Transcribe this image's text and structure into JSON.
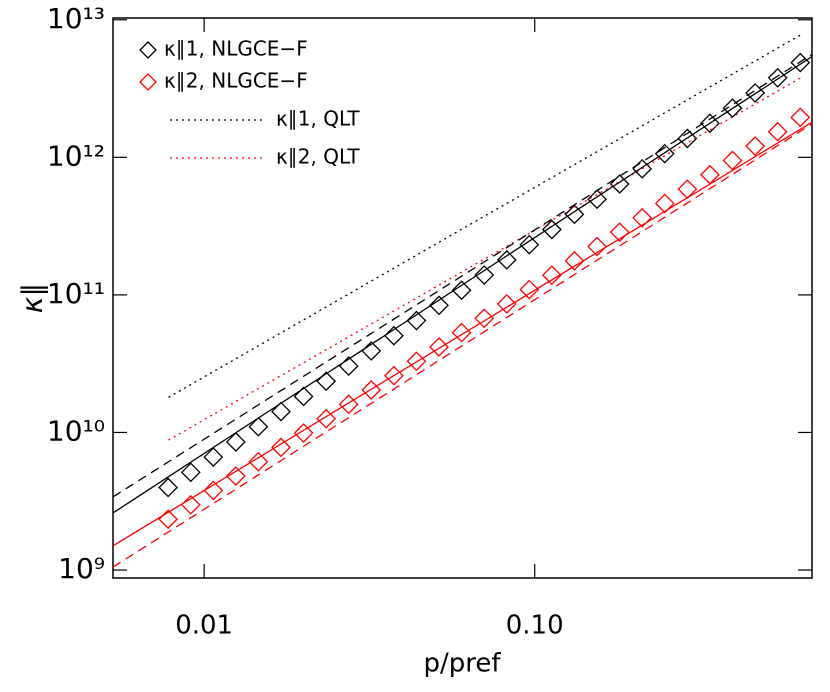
{
  "chart_data": {
    "type": "line",
    "xlabel": "p/pref",
    "ylabel": "κ∥",
    "xscale": "log",
    "yscale": "log",
    "xlim": [
      0.0053,
      0.69
    ],
    "ylim": [
      875000000,
      10300000000000
    ],
    "xticks": [
      0.01,
      {
        "value": 0.1,
        "label": "0.10"
      }
    ],
    "yticks": [
      {
        "value": 1000000000,
        "label": "10⁹"
      },
      {
        "value": 10000000000,
        "label": "10¹⁰"
      },
      {
        "value": 100000000000,
        "label": "10¹¹"
      },
      {
        "value": 1000000000000,
        "label": "10¹²"
      },
      {
        "value": 10000000000000,
        "label": "10¹³"
      }
    ],
    "legend": "upper left",
    "series": [
      {
        "name": "κ∥1, NLGCE−F",
        "color": "#000000",
        "style": "diamond",
        "x": [
          0.00778,
          0.00911,
          0.01066,
          0.01247,
          0.01459,
          0.01708,
          0.01999,
          0.02339,
          0.02737,
          0.03203,
          0.0375,
          0.04388,
          0.05135,
          0.06009,
          0.07035,
          0.08231,
          0.0963,
          0.1127,
          0.1319,
          0.1544,
          0.1807,
          0.2114,
          0.2474,
          0.2896,
          0.3389,
          0.3966,
          0.4643,
          0.5432,
          0.6358
        ],
        "values": [
          3980000000,
          5130000000,
          6620000000,
          8530000000,
          11000000000,
          14180000000,
          18270000000,
          23560000000,
          30370000000,
          39150000000,
          50500000000,
          65100000000,
          83900000000,
          108100000000,
          139400000000,
          179700000000,
          231700000000,
          298700000000,
          385000000000,
          496000000000,
          640000000000,
          825000000000,
          1063000000000,
          1371000000000,
          1767000000000,
          2278000000000,
          2937000000000,
          3785000000000,
          4880000000000
        ]
      },
      {
        "name": "κ∥2, NLGCE−F",
        "color": "#ff0000",
        "style": "diamond",
        "x": [
          0.00778,
          0.00911,
          0.01066,
          0.01247,
          0.01459,
          0.01708,
          0.01999,
          0.02339,
          0.02737,
          0.03203,
          0.0375,
          0.04388,
          0.05135,
          0.06009,
          0.07035,
          0.08231,
          0.0963,
          0.1127,
          0.1319,
          0.1544,
          0.1807,
          0.2114,
          0.2474,
          0.2896,
          0.3389,
          0.3966,
          0.4643,
          0.5432,
          0.6358
        ],
        "values": [
          2340000000,
          2980000000,
          3790000000,
          4820000000,
          6130000000,
          7790000000,
          9900000000,
          12590000000,
          16010000000,
          20360000000,
          25880000000,
          32900000000,
          41800000000,
          53200000000,
          67600000000,
          86000000000,
          109300000000,
          139000000000,
          176800000000,
          224700000000,
          285800000000,
          363400000000,
          462000000000,
          587000000000,
          747000000000,
          949000000000,
          1207000000000,
          1535000000000,
          1952000000000
        ]
      },
      {
        "name": "κ∥1, QLT",
        "color": "#000000",
        "style": "dotted",
        "x": [
          0.0078,
          0.64
        ],
        "values": [
          18000000000,
          7800000000000
        ]
      },
      {
        "name": "κ∥2, QLT",
        "color": "#ff0000",
        "style": "dotted",
        "x": [
          0.0078,
          0.64
        ],
        "values": [
          8800000000,
          3800000000000
        ]
      },
      {
        "color": "#000000",
        "style": "solid",
        "x": [
          0.0053,
          0.69
        ],
        "values": [
          2600000000,
          5400000000000
        ]
      },
      {
        "color": "#000000",
        "style": "dashed",
        "x": [
          0.0053,
          0.69
        ],
        "values": [
          3400000000,
          5600000000000
        ]
      },
      {
        "color": "#ff0000",
        "style": "solid",
        "x": [
          0.0053,
          0.69
        ],
        "values": [
          1500000000,
          1800000000000
        ]
      },
      {
        "color": "#ff0000",
        "style": "dashed",
        "x": [
          0.0053,
          0.69
        ],
        "values": [
          1050000000,
          1750000000000
        ]
      }
    ]
  }
}
